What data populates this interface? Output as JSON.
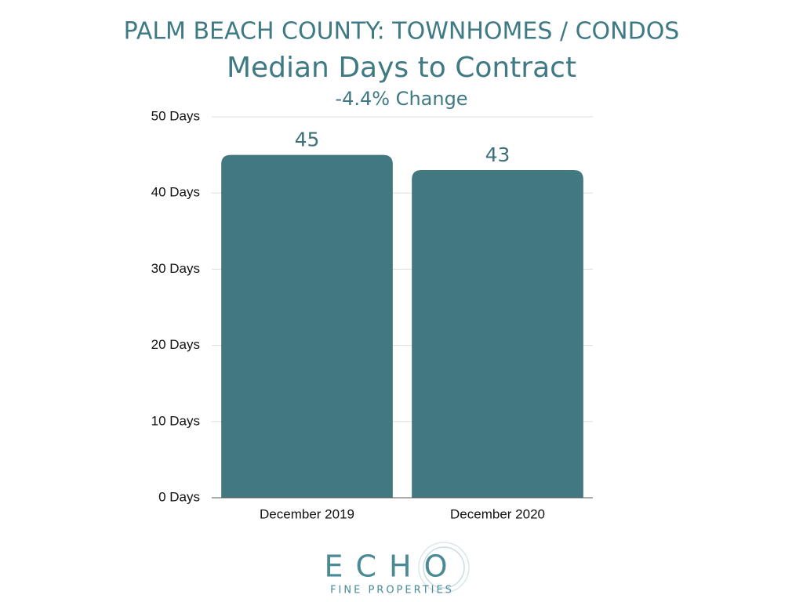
{
  "chart_data": {
    "type": "bar",
    "title": "PALM BEACH COUNTY: TOWNHOMES / CONDOS",
    "subtitle": "Median Days to Contract",
    "annotation": "-4.4% Change",
    "categories": [
      "December 2019",
      "December 2020"
    ],
    "values": [
      45,
      43
    ],
    "color": "#427880",
    "ylim": [
      0,
      50
    ],
    "yticks": [
      {
        "value": 0,
        "label": "0 Days"
      },
      {
        "value": 10,
        "label": "10 Days"
      },
      {
        "value": 20,
        "label": "20 Days"
      },
      {
        "value": 30,
        "label": "30 Days"
      },
      {
        "value": 40,
        "label": "40 Days"
      },
      {
        "value": 50,
        "label": "50 Days"
      }
    ],
    "grid": true
  },
  "logo": {
    "name": "ECHO",
    "tagline": "FINE PROPERTIES"
  }
}
